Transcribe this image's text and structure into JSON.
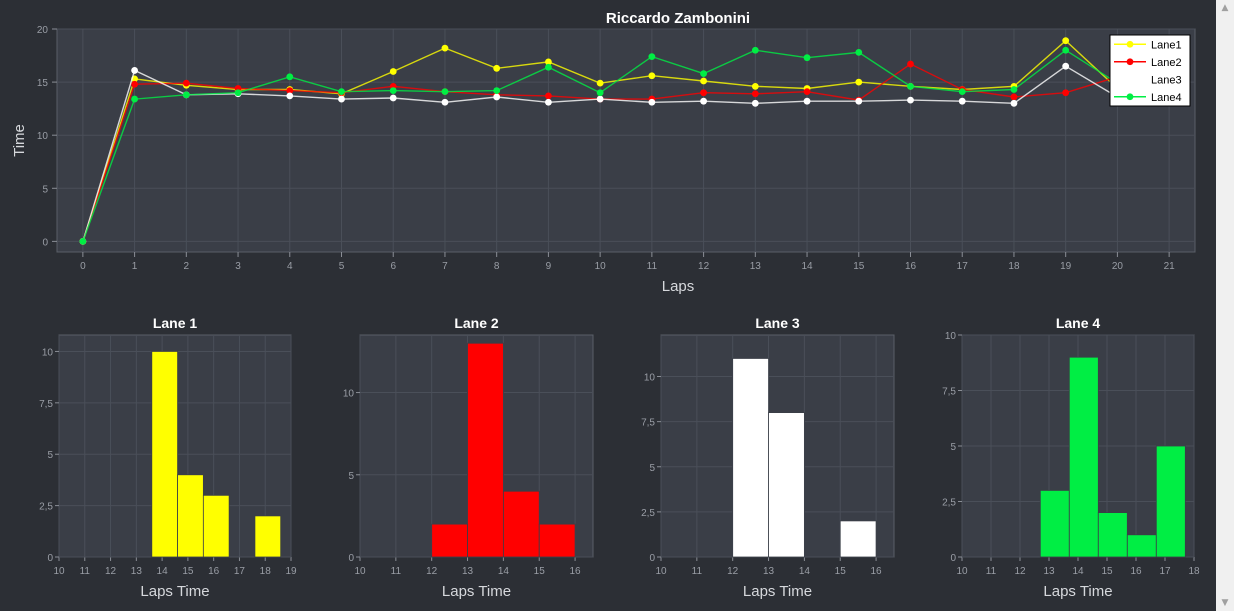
{
  "chart_data": [
    {
      "type": "line",
      "title": "Riccardo Zambonini",
      "xlabel": "Laps",
      "ylabel": "Time",
      "x": [
        0,
        1,
        2,
        3,
        4,
        5,
        6,
        7,
        8,
        9,
        10,
        11,
        12,
        13,
        14,
        15,
        16,
        17,
        18,
        19,
        20
      ],
      "xlim": [
        -0.5,
        21.5
      ],
      "ylim": [
        -1,
        20
      ],
      "xticks": [
        "0",
        "1",
        "2",
        "3",
        "4",
        "5",
        "6",
        "7",
        "8",
        "9",
        "10",
        "11",
        "12",
        "13",
        "14",
        "15",
        "16",
        "17",
        "18",
        "19",
        "20",
        "21"
      ],
      "yticks": [
        "0",
        "5",
        "10",
        "15",
        "20"
      ],
      "grid": true,
      "legend_position": "top-right",
      "series": [
        {
          "name": "Lane1",
          "color": "#ffff00",
          "values": [
            0,
            15.3,
            14.7,
            14.3,
            14.3,
            13.9,
            16.0,
            18.2,
            16.3,
            16.9,
            14.9,
            15.6,
            15.1,
            14.6,
            14.4,
            15.0,
            14.6,
            14.3,
            14.6,
            18.9,
            14.4
          ]
        },
        {
          "name": "Lane2",
          "color": "#ff0000",
          "values": [
            0,
            14.8,
            14.9,
            14.4,
            14.2,
            14.0,
            14.6,
            14.1,
            13.8,
            13.7,
            13.4,
            13.4,
            14.0,
            13.9,
            14.1,
            13.3,
            16.7,
            14.3,
            13.6,
            14.0,
            15.5
          ]
        },
        {
          "name": "Lane3",
          "color": "#ffffff",
          "values": [
            0,
            16.1,
            13.8,
            13.9,
            13.7,
            13.4,
            13.5,
            13.1,
            13.6,
            13.1,
            13.4,
            13.1,
            13.2,
            13.0,
            13.2,
            13.2,
            13.3,
            13.2,
            13.0,
            16.5,
            13.6
          ]
        },
        {
          "name": "Lane4",
          "color": "#00ee44",
          "values": [
            0,
            13.4,
            13.8,
            14.0,
            15.5,
            14.1,
            14.2,
            14.1,
            14.2,
            16.4,
            14.0,
            17.4,
            15.8,
            18.0,
            17.3,
            17.8,
            14.6,
            14.1,
            14.3,
            18.0,
            14.9
          ]
        }
      ]
    },
    {
      "type": "bar",
      "title": "Lane 1",
      "xlabel": "Laps Time",
      "color": "#ffff00",
      "xlim": [
        10,
        19
      ],
      "ylim": [
        0,
        10.8
      ],
      "xticks": [
        10,
        11,
        12,
        13,
        14,
        15,
        16,
        17,
        18,
        19
      ],
      "yticks": [
        {
          "v": 0,
          "t": "0"
        },
        {
          "v": 2.5,
          "t": "2,5"
        },
        {
          "v": 5,
          "t": "5"
        },
        {
          "v": 7.5,
          "t": "7,5"
        },
        {
          "v": 10,
          "t": "10"
        }
      ],
      "bins": [
        {
          "x0": 13.6,
          "x1": 14.6,
          "y": 10
        },
        {
          "x0": 14.6,
          "x1": 15.6,
          "y": 4
        },
        {
          "x0": 15.6,
          "x1": 16.6,
          "y": 3
        },
        {
          "x0": 17.6,
          "x1": 18.6,
          "y": 2
        }
      ]
    },
    {
      "type": "bar",
      "title": "Lane 2",
      "xlabel": "Laps Time",
      "color": "#ff0000",
      "xlim": [
        10,
        16.5
      ],
      "ylim": [
        0,
        13.5
      ],
      "xticks": [
        10,
        11,
        12,
        13,
        14,
        15,
        16
      ],
      "yticks": [
        {
          "v": 0,
          "t": "0"
        },
        {
          "v": 5,
          "t": "5"
        },
        {
          "v": 10,
          "t": "10"
        }
      ],
      "bins": [
        {
          "x0": 12.0,
          "x1": 13.0,
          "y": 2
        },
        {
          "x0": 13.0,
          "x1": 14.0,
          "y": 13
        },
        {
          "x0": 14.0,
          "x1": 15.0,
          "y": 4
        },
        {
          "x0": 15.0,
          "x1": 16.0,
          "y": 2
        }
      ]
    },
    {
      "type": "bar",
      "title": "Lane 3",
      "xlabel": "Laps Time",
      "color": "#ffffff",
      "xlim": [
        10,
        16.5
      ],
      "ylim": [
        0,
        12.3
      ],
      "xticks": [
        10,
        11,
        12,
        13,
        14,
        15,
        16
      ],
      "yticks": [
        {
          "v": 0,
          "t": "0"
        },
        {
          "v": 2.5,
          "t": "2,5"
        },
        {
          "v": 5,
          "t": "5"
        },
        {
          "v": 7.5,
          "t": "7,5"
        },
        {
          "v": 10,
          "t": "10"
        }
      ],
      "bins": [
        {
          "x0": 12.0,
          "x1": 13.0,
          "y": 11
        },
        {
          "x0": 13.0,
          "x1": 14.0,
          "y": 8
        },
        {
          "x0": 15.0,
          "x1": 16.0,
          "y": 2
        }
      ]
    },
    {
      "type": "bar",
      "title": "Lane 4",
      "xlabel": "Laps Time",
      "color": "#00ee44",
      "xlim": [
        10,
        18
      ],
      "ylim": [
        0,
        10
      ],
      "xticks": [
        10,
        11,
        12,
        13,
        14,
        15,
        16,
        17,
        18
      ],
      "yticks": [
        {
          "v": 0,
          "t": "0"
        },
        {
          "v": 2.5,
          "t": "2,5"
        },
        {
          "v": 5,
          "t": "5"
        },
        {
          "v": 7.5,
          "t": "7,5"
        },
        {
          "v": 10,
          "t": "10"
        }
      ],
      "bins": [
        {
          "x0": 12.7,
          "x1": 13.7,
          "y": 3
        },
        {
          "x0": 13.7,
          "x1": 14.7,
          "y": 9
        },
        {
          "x0": 14.7,
          "x1": 15.7,
          "y": 2
        },
        {
          "x0": 15.7,
          "x1": 16.7,
          "y": 1
        },
        {
          "x0": 16.7,
          "x1": 17.7,
          "y": 5
        }
      ]
    }
  ],
  "colors": {
    "background": "#2c2f35",
    "plot_area": "#3a3e47",
    "grid": "#4a4f59",
    "text": "#d6d8dc",
    "tick_text": "#9a9ea6"
  },
  "scrollbar": {
    "up_icon": "triangle-up-icon",
    "down_icon": "triangle-down-icon"
  }
}
